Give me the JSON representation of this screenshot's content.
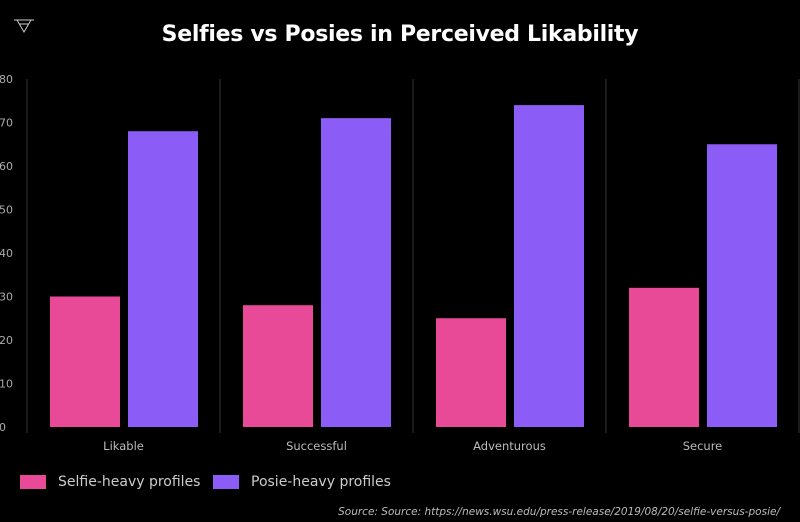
{
  "chart_data": {
    "type": "bar",
    "title": "Selfies vs Posies in Perceived Likability",
    "categories": [
      "Likable",
      "Successful",
      "Adventurous",
      "Secure"
    ],
    "series": [
      {
        "name": "Selfie-heavy profiles",
        "color": "#e84a98",
        "values": [
          30,
          28,
          25,
          32
        ]
      },
      {
        "name": "Posie-heavy profiles",
        "color": "#8b5cf6",
        "values": [
          68,
          71,
          74,
          65
        ]
      }
    ],
    "ylim": [
      0,
      80
    ],
    "yticks": [
      0,
      10,
      20,
      30,
      40,
      50,
      60,
      70,
      80
    ],
    "grid": "vertical category separators",
    "legend": "bottom-left",
    "source": "Source: Source: https://news.wsu.edu/press-release/2019/08/20/selfie-versus-posie/"
  },
  "logo_icon": "triangle-down-icon"
}
